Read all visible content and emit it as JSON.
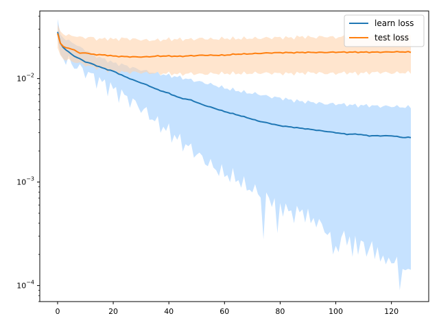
{
  "chart_data": {
    "type": "line",
    "yscale": "log",
    "xlim": [
      -6.4,
      133.4
    ],
    "ylim": [
      7e-05,
      0.045
    ],
    "x_ticks": [
      0,
      20,
      40,
      60,
      80,
      100,
      120
    ],
    "y_ticks": [
      {
        "value": 0.0001,
        "base": "10",
        "exp": "−4"
      },
      {
        "value": 0.001,
        "base": "10",
        "exp": "−3"
      },
      {
        "value": 0.01,
        "base": "10",
        "exp": "−2"
      }
    ],
    "grid": false,
    "legend_position": "top-right",
    "colors": {
      "learn": "#1f77b4",
      "learn_band": "#a8d2ff",
      "test": "#ff7f0e",
      "test_band": "#ffd3ad"
    },
    "x_keys": [
      0,
      1,
      2,
      4,
      6,
      8,
      10,
      12,
      15,
      18,
      20,
      24,
      28,
      32,
      36,
      40,
      44,
      48,
      52,
      56,
      60,
      64,
      68,
      72,
      76,
      80,
      84,
      88,
      92,
      96,
      100,
      104,
      108,
      112,
      116,
      120,
      124,
      127
    ],
    "series": [
      {
        "name": "learn loss",
        "mean_keys": [
          0.028,
          0.022,
          0.02,
          0.018,
          0.0165,
          0.0155,
          0.0145,
          0.014,
          0.013,
          0.0122,
          0.0118,
          0.0105,
          0.0095,
          0.0087,
          0.0078,
          0.0072,
          0.0065,
          0.0062,
          0.0056,
          0.0052,
          0.0048,
          0.0045,
          0.0042,
          0.0039,
          0.0037,
          0.0035,
          0.0034,
          0.0033,
          0.0032,
          0.0031,
          0.003,
          0.0029,
          0.0029,
          0.0028,
          0.0028,
          0.0028,
          0.0027,
          0.0027
        ],
        "upper_keys": [
          0.036,
          0.027,
          0.025,
          0.023,
          0.022,
          0.02,
          0.019,
          0.0175,
          0.016,
          0.015,
          0.0142,
          0.0135,
          0.0125,
          0.0118,
          0.0112,
          0.0107,
          0.0103,
          0.0097,
          0.0092,
          0.0087,
          0.0081,
          0.0077,
          0.0073,
          0.0071,
          0.0067,
          0.0065,
          0.0062,
          0.006,
          0.0059,
          0.0057,
          0.0057,
          0.0056,
          0.0055,
          0.0055,
          0.0054,
          0.0054,
          0.0053,
          0.0053
        ],
        "lower_keys": [
          0.02,
          0.018,
          0.016,
          0.0145,
          0.0135,
          0.0125,
          0.0117,
          0.0108,
          0.0095,
          0.0086,
          0.0079,
          0.0068,
          0.0057,
          0.0047,
          0.0037,
          0.0031,
          0.0025,
          0.0021,
          0.0017,
          0.0014,
          0.0012,
          0.0011,
          0.0009,
          0.0008,
          0.0007,
          0.0006,
          0.0005,
          0.00052,
          0.00045,
          0.00035,
          0.00028,
          0.0003,
          0.00025,
          0.00028,
          0.0002,
          0.00018,
          0.00015,
          0.00016
        ],
        "lower_dips": [
          [
            74,
            0.00028
          ],
          [
            79,
            0.00032
          ],
          [
            85,
            0.0005
          ],
          [
            91,
            0.0004
          ],
          [
            95,
            0.00042
          ],
          [
            99,
            0.0002
          ],
          [
            101,
            0.00021
          ],
          [
            106,
            0.00019
          ],
          [
            111,
            0.00019
          ],
          [
            114,
            0.00018
          ],
          [
            118,
            0.00016
          ],
          [
            123,
            9e-05
          ],
          [
            126,
            0.000145
          ]
        ]
      },
      {
        "name": "test loss",
        "mean_keys": [
          0.027,
          0.022,
          0.0205,
          0.0195,
          0.019,
          0.0175,
          0.0178,
          0.0172,
          0.017,
          0.0168,
          0.0165,
          0.0163,
          0.0162,
          0.0162,
          0.0165,
          0.0165,
          0.0164,
          0.0166,
          0.0168,
          0.0168,
          0.0168,
          0.0172,
          0.0173,
          0.0175,
          0.0177,
          0.0178,
          0.0178,
          0.0179,
          0.0179,
          0.0179,
          0.018,
          0.018,
          0.018,
          0.018,
          0.018,
          0.0181,
          0.0181,
          0.018
        ],
        "upper_keys": [
          0.032,
          0.029,
          0.027,
          0.026,
          0.026,
          0.025,
          0.025,
          0.025,
          0.024,
          0.0245,
          0.024,
          0.0245,
          0.024,
          0.0235,
          0.0235,
          0.024,
          0.024,
          0.024,
          0.0245,
          0.024,
          0.0245,
          0.0243,
          0.0245,
          0.0245,
          0.0248,
          0.025,
          0.0248,
          0.0255,
          0.025,
          0.0255,
          0.025,
          0.0255,
          0.0255,
          0.0258,
          0.0255,
          0.026,
          0.0265,
          0.0265
        ],
        "lower_keys": [
          0.019,
          0.017,
          0.0155,
          0.015,
          0.0145,
          0.014,
          0.0135,
          0.013,
          0.0125,
          0.012,
          0.0118,
          0.0115,
          0.0115,
          0.0113,
          0.0112,
          0.0112,
          0.011,
          0.0112,
          0.011,
          0.0112,
          0.0112,
          0.0112,
          0.0112,
          0.0113,
          0.0113,
          0.0112,
          0.0112,
          0.0113,
          0.0114,
          0.0112,
          0.0112,
          0.0114,
          0.0112,
          0.0114,
          0.0115,
          0.0113,
          0.0114,
          0.0114
        ]
      }
    ]
  }
}
